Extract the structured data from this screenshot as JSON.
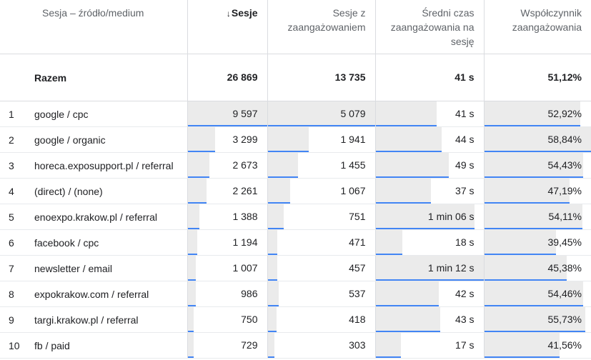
{
  "headers": {
    "dimension": "Sesja – źródło/medium",
    "sessions": "Sesje",
    "engaged": "Sesje z zaangażowaniem",
    "avg_time": "Średni czas zaangażowania na sesję",
    "rate": "Współczynnik zaangażowania"
  },
  "icons": {
    "sort": "arrow-down-icon"
  },
  "colors": {
    "accent_line": "#4285f4",
    "bar_fill": "#ebebeb"
  },
  "totals": {
    "label": "Razem",
    "sessions": "26 869",
    "engaged": "13 735",
    "avg_time": "41 s",
    "rate": "51,12%"
  },
  "rows": [
    {
      "idx": "1",
      "source": "google / cpc",
      "sessions": "9 597",
      "engaged": "5 079",
      "avg_time": "41 s",
      "rate": "52,92%",
      "sessions_v": 9597,
      "engaged_v": 5079,
      "time_v": 41,
      "rate_v": 52.92
    },
    {
      "idx": "2",
      "source": "google / organic",
      "sessions": "3 299",
      "engaged": "1 941",
      "avg_time": "44 s",
      "rate": "58,84%",
      "sessions_v": 3299,
      "engaged_v": 1941,
      "time_v": 44,
      "rate_v": 58.84
    },
    {
      "idx": "3",
      "source": "horeca.exposupport.pl / referral",
      "sessions": "2 673",
      "engaged": "1 455",
      "avg_time": "49 s",
      "rate": "54,43%",
      "sessions_v": 2673,
      "engaged_v": 1455,
      "time_v": 49,
      "rate_v": 54.43
    },
    {
      "idx": "4",
      "source": "(direct) / (none)",
      "sessions": "2 261",
      "engaged": "1 067",
      "avg_time": "37 s",
      "rate": "47,19%",
      "sessions_v": 2261,
      "engaged_v": 1067,
      "time_v": 37,
      "rate_v": 47.19
    },
    {
      "idx": "5",
      "source": "enoexpo.krakow.pl / referral",
      "sessions": "1 388",
      "engaged": "751",
      "avg_time": "1 min 06 s",
      "rate": "54,11%",
      "sessions_v": 1388,
      "engaged_v": 751,
      "time_v": 66,
      "rate_v": 54.11
    },
    {
      "idx": "6",
      "source": "facebook / cpc",
      "sessions": "1 194",
      "engaged": "471",
      "avg_time": "18 s",
      "rate": "39,45%",
      "sessions_v": 1194,
      "engaged_v": 471,
      "time_v": 18,
      "rate_v": 39.45
    },
    {
      "idx": "7",
      "source": "newsletter / email",
      "sessions": "1 007",
      "engaged": "457",
      "avg_time": "1 min 12 s",
      "rate": "45,38%",
      "sessions_v": 1007,
      "engaged_v": 457,
      "time_v": 72,
      "rate_v": 45.38
    },
    {
      "idx": "8",
      "source": "expokrakow.com / referral",
      "sessions": "986",
      "engaged": "537",
      "avg_time": "42 s",
      "rate": "54,46%",
      "sessions_v": 986,
      "engaged_v": 537,
      "time_v": 42,
      "rate_v": 54.46
    },
    {
      "idx": "9",
      "source": "targi.krakow.pl / referral",
      "sessions": "750",
      "engaged": "418",
      "avg_time": "43 s",
      "rate": "55,73%",
      "sessions_v": 750,
      "engaged_v": 418,
      "time_v": 43,
      "rate_v": 55.73
    },
    {
      "idx": "10",
      "source": "fb / paid",
      "sessions": "729",
      "engaged": "303",
      "avg_time": "17 s",
      "rate": "41,56%",
      "sessions_v": 729,
      "engaged_v": 303,
      "time_v": 17,
      "rate_v": 41.56
    }
  ]
}
